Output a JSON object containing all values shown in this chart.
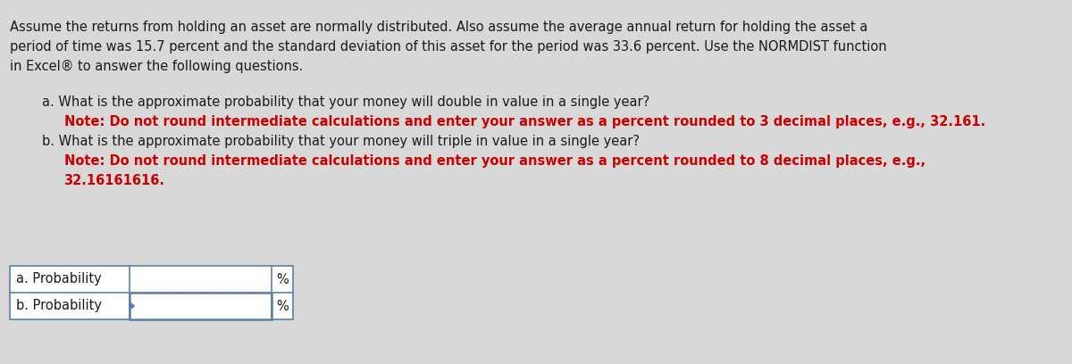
{
  "background_color": "#d8d8d8",
  "title_text_line1": "Assume the returns from holding an asset are normally distributed. Also assume the average annual return for holding the asset a",
  "title_text_line2": "period of time was 15.7 percent and the standard deviation of this asset for the period was 33.6 percent. Use the NORMDIST function",
  "title_text_line3": "in Excel® to answer the following questions.",
  "question_a_line1": "a. What is the approximate probability that your money will double in value in a single year?",
  "question_a_note": "Note: Do not round intermediate calculations and enter your answer as a percent rounded to 3 decimal places, e.g., 32.161.",
  "question_b_line1": "b. What is the approximate probability that your money will triple in value in a single year?",
  "question_b_note_line1": "Note: Do not round intermediate calculations and enter your answer as a percent rounded to 8 decimal places, e.g.,",
  "question_b_note_line2": "32.16161616.",
  "row_a_label": "a. Probability",
  "row_b_label": "b. Probability",
  "percent_symbol": "%",
  "normal_text_color": "#1a1a1a",
  "note_text_color": "#cc0000",
  "table_border_color": "#5b7fa6",
  "body_bg": "#d8d8d8",
  "text_fontsize": 10.5,
  "note_fontsize": 10.5,
  "table_label_fontsize": 10.5
}
